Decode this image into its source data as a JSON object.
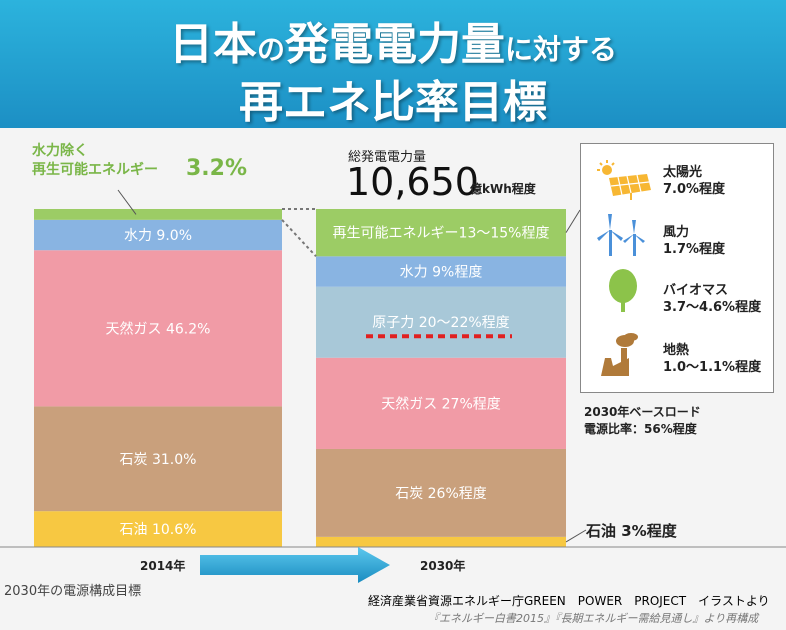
{
  "header": {
    "line1_part1": "日本",
    "line1_part2": "の",
    "line1_part3": "発電電力量",
    "line1_part4": "に対する",
    "line2": "再エネ比率目標"
  },
  "colors": {
    "header": "#2aa9d8",
    "renewable": "#9ccc65",
    "hydro": "#89b4e2",
    "nuclear": "#a8c8d8",
    "gas": "#f19ba6",
    "coal": "#c9a07c",
    "oil": "#f7c842",
    "arrow": "#2aa9d8"
  },
  "chart_data": {
    "type": "bar",
    "stacked": true,
    "categories": [
      "2014年",
      "2030年"
    ],
    "series": [
      {
        "name": "石油",
        "values": [
          10.6,
          3
        ],
        "labels": [
          "石油 10.6%",
          "石油 3%程度"
        ]
      },
      {
        "name": "石炭",
        "values": [
          31.0,
          26
        ],
        "labels": [
          "石炭 31.0%",
          "石炭 26%程度"
        ]
      },
      {
        "name": "天然ガス",
        "values": [
          46.2,
          27
        ],
        "labels": [
          "天然ガス 46.2%",
          "天然ガス 27%程度"
        ]
      },
      {
        "name": "原子力",
        "values": [
          0,
          21
        ],
        "labels": [
          "",
          "原子力 20〜22%程度"
        ]
      },
      {
        "name": "水力",
        "values": [
          9.0,
          9
        ],
        "labels": [
          "水力 9.0%",
          "水力 9%程度"
        ]
      },
      {
        "name": "再生可能エネルギー",
        "values": [
          3.2,
          14
        ],
        "labels": [
          "",
          "再生可能エネルギー13〜15%程度"
        ]
      }
    ],
    "annotations": {
      "renewable_2014_label": "水力除く\n再生可能エネルギー",
      "renewable_2014_value": "3.2%",
      "total_label": "総発電電力量",
      "total_value": "10,650",
      "total_unit": "億kWh程度",
      "baseload_line1": "2030年ベースロード",
      "baseload_line2": "電源比率：56%程度"
    },
    "renewable_breakdown": [
      {
        "name": "太陽光",
        "value": "7.0%程度",
        "icon": "solar-panel-icon"
      },
      {
        "name": "風力",
        "value": "1.7%程度",
        "icon": "wind-turbine-icon"
      },
      {
        "name": "バイオマス",
        "value": "3.7〜4.6%程度",
        "icon": "tree-icon"
      },
      {
        "name": "地熱",
        "value": "1.0〜1.1%程度",
        "icon": "geothermal-plant-icon"
      }
    ]
  },
  "footer": {
    "caption": "2030年の電源構成目標",
    "credit": "経済産業省資源エネルギー庁GREEN　POWER　PROJECT　イラストより",
    "source": "『エネルギー白書2015』『長期エネルギー需給見通し』より再構成"
  }
}
